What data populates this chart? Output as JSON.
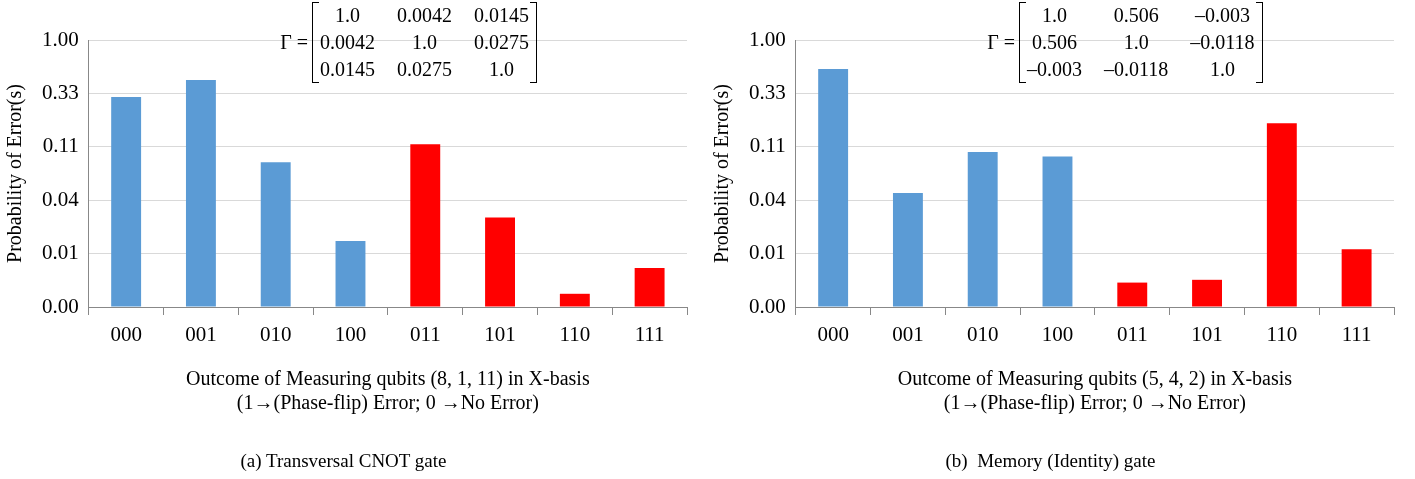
{
  "chart_data": [
    {
      "type": "bar",
      "title": "(a) Transversal CNOT gate",
      "xlabel": "Outcome of Measuring qubits (8, 1, 11) in X-basis\n(1→(Phase-flip) Error; 0 →No Error)",
      "ylabel": "Probability of Error(s)",
      "categories": [
        "000",
        "001",
        "010",
        "100",
        "011",
        "101",
        "110",
        "111"
      ],
      "values": [
        0.31,
        0.44,
        0.081,
        0.016,
        0.117,
        0.026,
        0.0054,
        0.0092
      ],
      "colors": [
        "#5b9bd5",
        "#5b9bd5",
        "#5b9bd5",
        "#5b9bd5",
        "#ff0000",
        "#ff0000",
        "#ff0000",
        "#ff0000"
      ],
      "log": true,
      "ylim": [
        0.004115,
        1
      ],
      "yticks": [
        {
          "value": 0.004115,
          "label": "0.00"
        },
        {
          "value": 0.012346,
          "label": "0.01"
        },
        {
          "value": 0.037037,
          "label": "0.04"
        },
        {
          "value": 0.111111,
          "label": "0.11"
        },
        {
          "value": 0.333333,
          "label": "0.33"
        },
        {
          "value": 1,
          "label": "1.00"
        }
      ],
      "grid": "y",
      "annotations": [
        "Γ =",
        "1.0",
        "0.0042",
        "0.0145",
        "0.0042",
        "1.0",
        "0.0275",
        "0.0145",
        "0.0275",
        "1.0"
      ]
    },
    {
      "type": "bar",
      "title": "(b)  Memory (Identity) gate",
      "xlabel": "Outcome of Measuring qubits (5, 4, 2) in X-basis\n(1→(Phase-flip) Error; 0 →No Error)",
      "ylabel": "Probability of Error(s)",
      "categories": [
        "000",
        "001",
        "010",
        "100",
        "011",
        "101",
        "110",
        "111"
      ],
      "values": [
        0.55,
        0.043,
        0.1,
        0.091,
        0.0068,
        0.0072,
        0.18,
        0.0135
      ],
      "colors": [
        "#5b9bd5",
        "#5b9bd5",
        "#5b9bd5",
        "#5b9bd5",
        "#ff0000",
        "#ff0000",
        "#ff0000",
        "#ff0000"
      ],
      "log": true,
      "ylim": [
        0.004115,
        1
      ],
      "yticks": [
        {
          "value": 0.004115,
          "label": "0.00"
        },
        {
          "value": 0.012346,
          "label": "0.01"
        },
        {
          "value": 0.037037,
          "label": "0.04"
        },
        {
          "value": 0.111111,
          "label": "0.11"
        },
        {
          "value": 0.333333,
          "label": "0.33"
        },
        {
          "value": 1,
          "label": "1.00"
        }
      ],
      "grid": "y",
      "annotations": [
        "Γ =",
        "1.0",
        "0.506",
        "–0.003",
        "0.506",
        "1.0",
        "–0.0118",
        "–0.003",
        "–0.0118",
        "1.0"
      ]
    }
  ]
}
